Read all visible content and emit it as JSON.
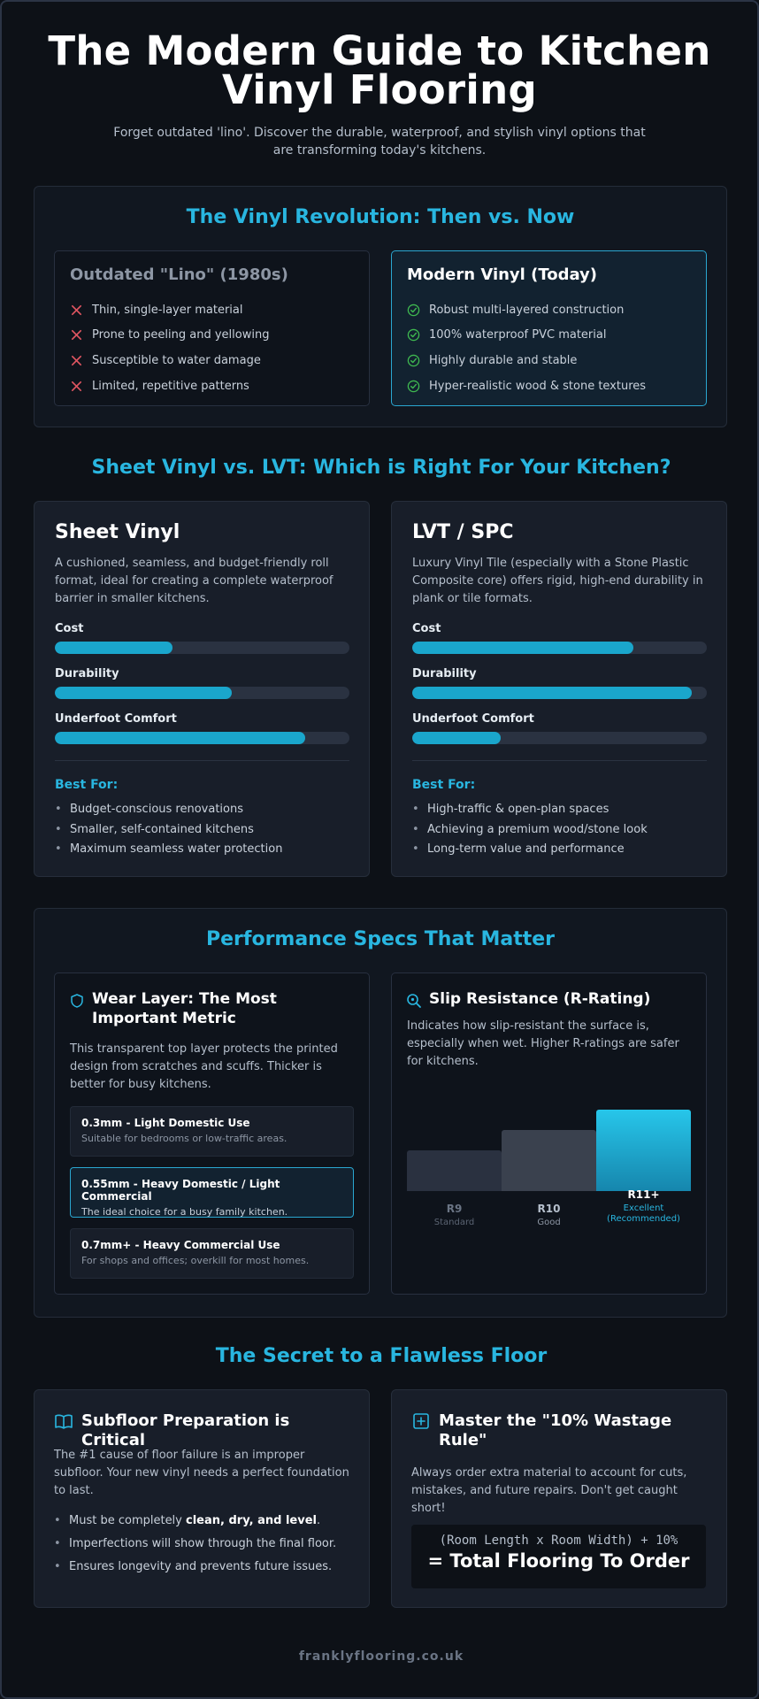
{
  "header": {
    "title_line1": "The Modern Guide to Kitchen",
    "title_line2": "Vinyl Flooring",
    "subtitle_line1": "Forget outdated 'lino'. Discover the durable, waterproof, and stylish vinyl options that",
    "subtitle_line2": "are transforming today's kitchens."
  },
  "revolution": {
    "title": "The Vinyl Revolution: Then vs. Now",
    "old": {
      "heading": "Outdated \"Lino\" (1980s)",
      "items": [
        "Thin, single-layer material",
        "Prone to peeling and yellowing",
        "Susceptible to water damage",
        "Limited, repetitive patterns"
      ]
    },
    "new": {
      "heading": "Modern Vinyl (Today)",
      "items": [
        "Robust multi-layered construction",
        "100% waterproof PVC material",
        "Highly durable and stable",
        "Hyper-realistic wood & stone textures"
      ]
    }
  },
  "comparison": {
    "title": "Sheet Vinyl vs. LVT: Which is Right For Your Kitchen?",
    "metric_labels": {
      "cost": "Cost",
      "durability": "Durability",
      "comfort": "Underfoot Comfort"
    },
    "best_for_label": "Best For:",
    "sheet": {
      "name": "Sheet Vinyl",
      "desc_line1": "A cushioned, seamless, and budget-friendly roll",
      "desc_line2": "format, ideal for creating a complete waterproof",
      "desc_line3": "barrier in smaller kitchens.",
      "levels": {
        "cost": 40,
        "durability": 60,
        "comfort": 85
      },
      "best_for": [
        "Budget-conscious renovations",
        "Smaller, self-contained kitchens",
        "Maximum seamless water protection"
      ]
    },
    "lvt": {
      "name": "LVT / SPC",
      "desc_line1": "Luxury Vinyl Tile (especially with a Stone Plastic",
      "desc_line2": "Composite core) offers rigid, high-end durability in",
      "desc_line3": "plank or tile formats.",
      "levels": {
        "cost": 75,
        "durability": 95,
        "comfort": 30
      },
      "best_for": [
        "High-traffic & open-plan spaces",
        "Achieving a premium wood/stone look",
        "Long-term value and performance"
      ]
    }
  },
  "specs": {
    "title": "Performance Specs That Matter",
    "wear": {
      "icon": "shield-icon",
      "heading_line1": "Wear Layer: The Most",
      "heading_line2": "Important Metric",
      "desc_line1": "This transparent top layer protects the printed",
      "desc_line2": "design from scratches and scuffs. Thicker is",
      "desc_line3": "better for busy kitchens.",
      "tiers": [
        {
          "title": "0.3mm - Light Domestic Use",
          "sub": "Suitable for bedrooms or low-traffic areas."
        },
        {
          "title": "0.55mm - Heavy Domestic / Light Commercial",
          "sub": "The ideal choice for a busy family kitchen."
        },
        {
          "title": "0.7mm+ - Heavy Commercial Use",
          "sub": "For shops and offices; overkill for most homes."
        }
      ]
    },
    "slip": {
      "icon": "magnifier-icon",
      "heading": "Slip Resistance (R-Rating)",
      "desc_line1": "Indicates how slip-resistant the surface is,",
      "desc_line2": "especially when wet. Higher R-ratings are safer",
      "desc_line3": "for kitchens.",
      "ratings": [
        {
          "name": "R9",
          "label": "Standard",
          "level": 1
        },
        {
          "name": "R10",
          "label": "Good",
          "level": 2
        },
        {
          "name": "R11+",
          "label": "Excellent",
          "label2": "(Recommended)",
          "level": 3
        }
      ]
    }
  },
  "secret": {
    "title": "The Secret to a Flawless Floor",
    "subfloor": {
      "icon": "book-icon",
      "heading": "Subfloor Preparation is Critical",
      "desc_line1": "The #1 cause of floor failure is an improper",
      "desc_line2": "subfloor. Your new vinyl needs a perfect foundation",
      "desc_line3": "to last.",
      "bullet1_pre": "Must be completely ",
      "bullet1_bold": "clean, dry, and level",
      "bullet1_post": ".",
      "bullet2": "Imperfections will show through the final floor.",
      "bullet3": "Ensures longevity and prevents future issues."
    },
    "wastage": {
      "icon": "plus-square-icon",
      "heading_line1": "Master the \"10% Wastage",
      "heading_line2": "Rule\"",
      "desc_line1": "Always order extra material to account for cuts,",
      "desc_line2": "mistakes, and future repairs. Don't get caught",
      "desc_line3": "short!",
      "formula": "(Room Length x Room Width) + 10%",
      "result": "= Total Flooring To Order"
    }
  },
  "footer": {
    "site": "franklyflooring.co.uk"
  },
  "colors": {
    "accent": "#29b6e0",
    "bar_fill": "#1aa6cc",
    "cross": "#e05561",
    "check": "#3fb950"
  }
}
